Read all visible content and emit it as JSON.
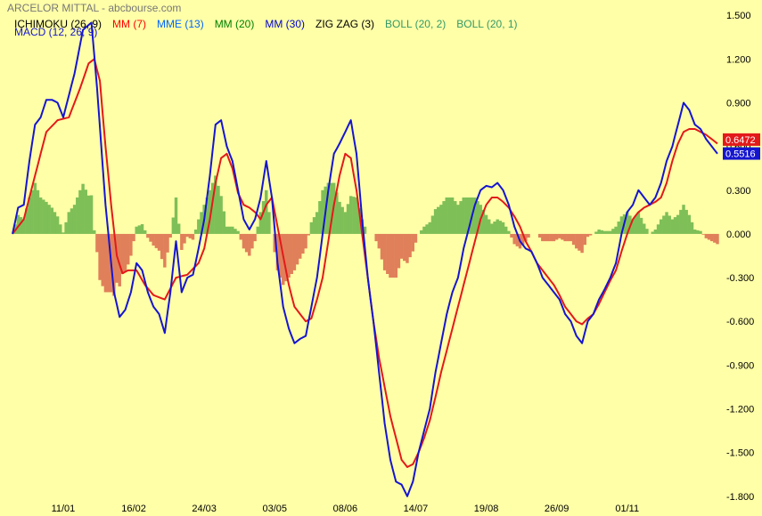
{
  "header": {
    "title": "ARCELOR MITTAL - abcbourse.com",
    "macd_label": "MACD (12, 26, 9)",
    "indicators": [
      {
        "label": "ICHIMOKU (26, 9)",
        "color": "#000000"
      },
      {
        "label": "MM (7)",
        "color": "#ff0000"
      },
      {
        "label": "MME (13)",
        "color": "#0066ff"
      },
      {
        "label": "MM (20)",
        "color": "#008000"
      },
      {
        "label": "MM (30)",
        "color": "#0000cc"
      },
      {
        "label": "ZIG ZAG (3)",
        "color": "#000000"
      },
      {
        "label": "BOLL (20, 2)",
        "color": "#339966"
      },
      {
        "label": "BOLL (20, 1)",
        "color": "#339966"
      }
    ]
  },
  "chart_data": {
    "type": "line",
    "ylim": [
      -1.85,
      1.55
    ],
    "yticks": [
      "1.500",
      "1.200",
      "0.900",
      "0.600",
      "0.300",
      "0.000",
      "-0.300",
      "-0.600",
      "-0.900",
      "-1.200",
      "-1.500",
      "-1.800"
    ],
    "ytick_values": [
      1.5,
      1.2,
      0.9,
      0.6,
      0.3,
      0.0,
      -0.3,
      -0.6,
      -0.9,
      -1.2,
      -1.5,
      -1.8
    ],
    "xticks": [
      "11/01",
      "16/02",
      "24/03",
      "03/05",
      "08/06",
      "14/07",
      "19/08",
      "26/09",
      "01/11"
    ],
    "xtick_positions": [
      18,
      43,
      68,
      93,
      118,
      143,
      168,
      193,
      218
    ],
    "n_points": 250,
    "colors": {
      "macd": "#1515d0",
      "signal": "#e31a1a",
      "hist_pos": "#7fbf58",
      "hist_neg": "#e0805a"
    },
    "series": [
      {
        "name": "MACD",
        "role": "macd",
        "points": [
          [
            0,
            0.0
          ],
          [
            2,
            0.18
          ],
          [
            4,
            0.2
          ],
          [
            6,
            0.5
          ],
          [
            8,
            0.75
          ],
          [
            10,
            0.8
          ],
          [
            12,
            0.92
          ],
          [
            14,
            0.92
          ],
          [
            16,
            0.9
          ],
          [
            18,
            0.8
          ],
          [
            20,
            0.95
          ],
          [
            22,
            1.1
          ],
          [
            25,
            1.4
          ],
          [
            28,
            1.45
          ],
          [
            30,
            1.0
          ],
          [
            33,
            0.2
          ],
          [
            36,
            -0.4
          ],
          [
            38,
            -0.57
          ],
          [
            40,
            -0.52
          ],
          [
            42,
            -0.4
          ],
          [
            44,
            -0.2
          ],
          [
            46,
            -0.25
          ],
          [
            48,
            -0.4
          ],
          [
            50,
            -0.5
          ],
          [
            52,
            -0.55
          ],
          [
            54,
            -0.68
          ],
          [
            56,
            -0.4
          ],
          [
            58,
            -0.05
          ],
          [
            60,
            -0.4
          ],
          [
            62,
            -0.3
          ],
          [
            64,
            -0.28
          ],
          [
            66,
            -0.1
          ],
          [
            68,
            0.1
          ],
          [
            70,
            0.4
          ],
          [
            72,
            0.75
          ],
          [
            74,
            0.78
          ],
          [
            76,
            0.6
          ],
          [
            78,
            0.5
          ],
          [
            80,
            0.3
          ],
          [
            82,
            0.1
          ],
          [
            84,
            0.03
          ],
          [
            86,
            0.1
          ],
          [
            88,
            0.25
          ],
          [
            90,
            0.5
          ],
          [
            92,
            0.25
          ],
          [
            94,
            -0.2
          ],
          [
            96,
            -0.5
          ],
          [
            98,
            -0.65
          ],
          [
            100,
            -0.75
          ],
          [
            102,
            -0.72
          ],
          [
            104,
            -0.7
          ],
          [
            106,
            -0.5
          ],
          [
            108,
            -0.3
          ],
          [
            110,
            0.0
          ],
          [
            112,
            0.3
          ],
          [
            114,
            0.55
          ],
          [
            116,
            0.62
          ],
          [
            118,
            0.7
          ],
          [
            120,
            0.78
          ],
          [
            122,
            0.55
          ],
          [
            124,
            0.1
          ],
          [
            126,
            -0.3
          ],
          [
            128,
            -0.6
          ],
          [
            130,
            -0.95
          ],
          [
            132,
            -1.3
          ],
          [
            134,
            -1.55
          ],
          [
            136,
            -1.7
          ],
          [
            138,
            -1.72
          ],
          [
            140,
            -1.8
          ],
          [
            142,
            -1.7
          ],
          [
            144,
            -1.5
          ],
          [
            146,
            -1.35
          ],
          [
            148,
            -1.2
          ],
          [
            150,
            -0.95
          ],
          [
            152,
            -0.75
          ],
          [
            154,
            -0.55
          ],
          [
            156,
            -0.4
          ],
          [
            158,
            -0.3
          ],
          [
            160,
            -0.1
          ],
          [
            162,
            0.05
          ],
          [
            164,
            0.2
          ],
          [
            166,
            0.3
          ],
          [
            168,
            0.33
          ],
          [
            170,
            0.32
          ],
          [
            172,
            0.35
          ],
          [
            174,
            0.3
          ],
          [
            176,
            0.2
          ],
          [
            178,
            0.05
          ],
          [
            180,
            -0.05
          ],
          [
            182,
            -0.1
          ],
          [
            184,
            -0.12
          ],
          [
            186,
            -0.2
          ],
          [
            188,
            -0.3
          ],
          [
            190,
            -0.35
          ],
          [
            192,
            -0.4
          ],
          [
            194,
            -0.45
          ],
          [
            196,
            -0.55
          ],
          [
            198,
            -0.6
          ],
          [
            200,
            -0.7
          ],
          [
            202,
            -0.75
          ],
          [
            204,
            -0.6
          ],
          [
            206,
            -0.55
          ],
          [
            208,
            -0.45
          ],
          [
            210,
            -0.38
          ],
          [
            212,
            -0.3
          ],
          [
            214,
            -0.2
          ],
          [
            216,
            0.0
          ],
          [
            218,
            0.15
          ],
          [
            220,
            0.2
          ],
          [
            222,
            0.3
          ],
          [
            224,
            0.25
          ],
          [
            226,
            0.2
          ],
          [
            228,
            0.25
          ],
          [
            230,
            0.35
          ],
          [
            232,
            0.5
          ],
          [
            234,
            0.6
          ],
          [
            236,
            0.75
          ],
          [
            238,
            0.9
          ],
          [
            240,
            0.85
          ],
          [
            242,
            0.75
          ],
          [
            244,
            0.72
          ],
          [
            246,
            0.65
          ],
          [
            248,
            0.6
          ],
          [
            250,
            0.55
          ]
        ]
      },
      {
        "name": "Signal",
        "role": "signal",
        "points": [
          [
            0,
            0.0
          ],
          [
            4,
            0.1
          ],
          [
            8,
            0.4
          ],
          [
            12,
            0.7
          ],
          [
            16,
            0.78
          ],
          [
            20,
            0.8
          ],
          [
            24,
            1.0
          ],
          [
            27,
            1.17
          ],
          [
            29,
            1.2
          ],
          [
            31,
            1.05
          ],
          [
            33,
            0.6
          ],
          [
            35,
            0.2
          ],
          [
            37,
            -0.15
          ],
          [
            39,
            -0.27
          ],
          [
            41,
            -0.25
          ],
          [
            44,
            -0.25
          ],
          [
            47,
            -0.35
          ],
          [
            50,
            -0.42
          ],
          [
            54,
            -0.45
          ],
          [
            58,
            -0.3
          ],
          [
            62,
            -0.28
          ],
          [
            66,
            -0.2
          ],
          [
            68,
            -0.1
          ],
          [
            70,
            0.1
          ],
          [
            72,
            0.35
          ],
          [
            74,
            0.52
          ],
          [
            76,
            0.55
          ],
          [
            78,
            0.45
          ],
          [
            80,
            0.28
          ],
          [
            82,
            0.2
          ],
          [
            84,
            0.18
          ],
          [
            86,
            0.15
          ],
          [
            88,
            0.1
          ],
          [
            90,
            0.2
          ],
          [
            92,
            0.25
          ],
          [
            94,
            0.05
          ],
          [
            96,
            -0.15
          ],
          [
            98,
            -0.35
          ],
          [
            100,
            -0.5
          ],
          [
            102,
            -0.55
          ],
          [
            104,
            -0.6
          ],
          [
            106,
            -0.58
          ],
          [
            108,
            -0.45
          ],
          [
            110,
            -0.3
          ],
          [
            112,
            -0.05
          ],
          [
            114,
            0.2
          ],
          [
            116,
            0.4
          ],
          [
            118,
            0.55
          ],
          [
            120,
            0.52
          ],
          [
            122,
            0.3
          ],
          [
            124,
            0.0
          ],
          [
            126,
            -0.3
          ],
          [
            128,
            -0.6
          ],
          [
            130,
            -0.85
          ],
          [
            132,
            -1.05
          ],
          [
            134,
            -1.25
          ],
          [
            136,
            -1.4
          ],
          [
            138,
            -1.55
          ],
          [
            140,
            -1.6
          ],
          [
            142,
            -1.58
          ],
          [
            144,
            -1.5
          ],
          [
            146,
            -1.4
          ],
          [
            148,
            -1.28
          ],
          [
            150,
            -1.12
          ],
          [
            152,
            -0.95
          ],
          [
            154,
            -0.8
          ],
          [
            156,
            -0.65
          ],
          [
            158,
            -0.5
          ],
          [
            160,
            -0.35
          ],
          [
            162,
            -0.2
          ],
          [
            164,
            -0.05
          ],
          [
            166,
            0.1
          ],
          [
            168,
            0.2
          ],
          [
            170,
            0.25
          ],
          [
            172,
            0.25
          ],
          [
            174,
            0.22
          ],
          [
            176,
            0.18
          ],
          [
            178,
            0.12
          ],
          [
            180,
            0.05
          ],
          [
            182,
            -0.05
          ],
          [
            184,
            -0.12
          ],
          [
            186,
            -0.2
          ],
          [
            188,
            -0.25
          ],
          [
            190,
            -0.3
          ],
          [
            192,
            -0.35
          ],
          [
            194,
            -0.42
          ],
          [
            196,
            -0.5
          ],
          [
            198,
            -0.55
          ],
          [
            200,
            -0.6
          ],
          [
            202,
            -0.62
          ],
          [
            204,
            -0.58
          ],
          [
            206,
            -0.55
          ],
          [
            208,
            -0.48
          ],
          [
            210,
            -0.4
          ],
          [
            212,
            -0.32
          ],
          [
            214,
            -0.25
          ],
          [
            216,
            -0.12
          ],
          [
            218,
            0.0
          ],
          [
            220,
            0.1
          ],
          [
            222,
            0.15
          ],
          [
            224,
            0.18
          ],
          [
            226,
            0.2
          ],
          [
            228,
            0.22
          ],
          [
            230,
            0.25
          ],
          [
            232,
            0.35
          ],
          [
            234,
            0.5
          ],
          [
            236,
            0.62
          ],
          [
            238,
            0.7
          ],
          [
            240,
            0.72
          ],
          [
            242,
            0.72
          ],
          [
            244,
            0.7
          ],
          [
            246,
            0.68
          ],
          [
            248,
            0.65
          ],
          [
            250,
            0.62
          ]
        ]
      }
    ],
    "last_values": {
      "signal": "0.6472",
      "macd": "0.5516"
    }
  }
}
